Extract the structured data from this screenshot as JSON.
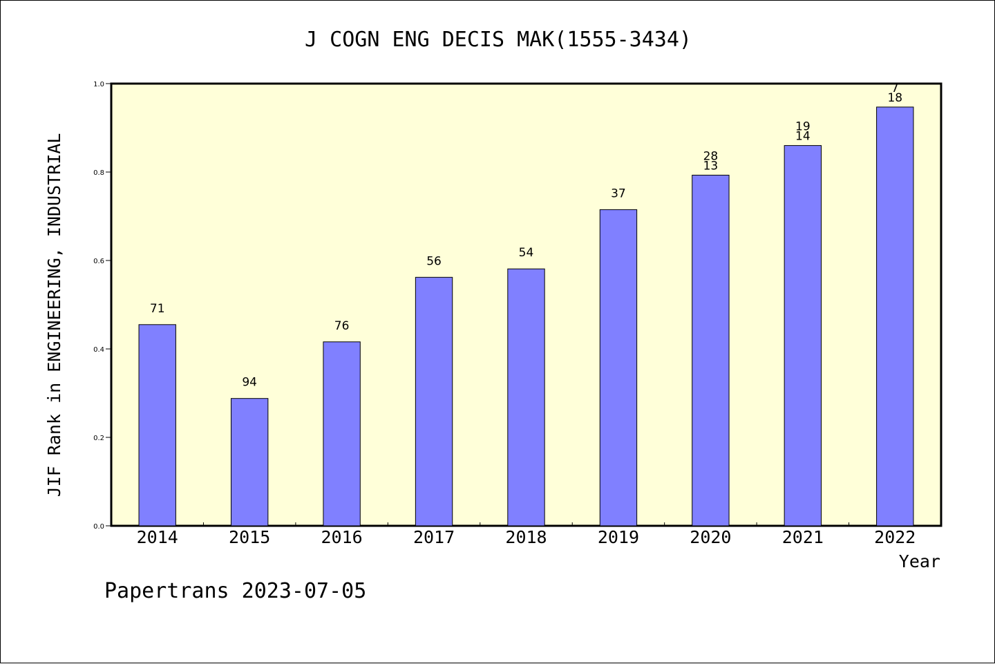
{
  "chart_data": {
    "type": "bar",
    "title": "J COGN ENG DECIS MAK(1555-3434)",
    "xlabel": "Year",
    "ylabel": "JIF Rank in ENGINEERING, INDUSTRIAL",
    "ylim": [
      0,
      1.0
    ],
    "yticks": [
      "0.0",
      "0.2",
      "0.4",
      "0.6",
      "0.8",
      "1.0"
    ],
    "categories": [
      "2014",
      "2015",
      "2016",
      "2017",
      "2018",
      "2019",
      "2020",
      "2021",
      "2022"
    ],
    "values": [
      0.455,
      0.288,
      0.416,
      0.562,
      0.581,
      0.715,
      0.793,
      0.86,
      0.947
    ],
    "bar_labels": [
      [
        "71"
      ],
      [
        "94"
      ],
      [
        "76"
      ],
      [
        "56"
      ],
      [
        "54"
      ],
      [
        "37"
      ],
      [
        "28",
        "13"
      ],
      [
        "19",
        "14"
      ],
      [
        "7",
        "18"
      ]
    ],
    "grid": false,
    "colors": {
      "bar": "#8080ff",
      "plot_bg": "#ffffd9",
      "frame": "#000000"
    }
  },
  "footer": {
    "credit": "Papertrans 2023-07-05"
  }
}
